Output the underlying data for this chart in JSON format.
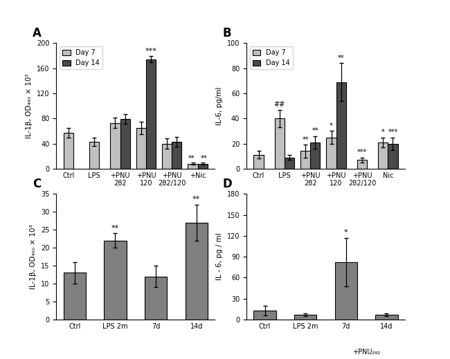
{
  "A": {
    "categories": [
      "Ctrl",
      "LPS",
      "+PNU\n282",
      "+PNU\n120",
      "+PNU\n282/120",
      "+Nic"
    ],
    "day7_values": [
      57,
      43,
      73,
      65,
      40,
      8
    ],
    "day7_errors": [
      8,
      7,
      8,
      10,
      8,
      2
    ],
    "day14_values": [
      null,
      null,
      79,
      174,
      43,
      8
    ],
    "day14_errors": [
      null,
      null,
      8,
      5,
      8,
      2
    ],
    "ylabel": "IL-1β, OD₄₉₀ × 10³",
    "ylim": [
      0,
      200
    ],
    "yticks": [
      0,
      40,
      80,
      120,
      160,
      200
    ],
    "label": "A"
  },
  "B": {
    "categories": [
      "Ctrl",
      "LPS",
      "+PNU\n282",
      "+PNU\n120",
      "+PNU\n282/120",
      "Nic"
    ],
    "day7_values": [
      11,
      40,
      14,
      25,
      7,
      21
    ],
    "day7_errors": [
      3,
      7,
      5,
      5,
      2,
      4
    ],
    "day14_values": [
      null,
      9,
      21,
      69,
      null,
      20
    ],
    "day14_errors": [
      null,
      2,
      5,
      15,
      null,
      5
    ],
    "ylabel": "IL-6, pg/ml",
    "ylim": [
      0,
      100
    ],
    "yticks": [
      0,
      20,
      40,
      60,
      80,
      100
    ],
    "label": "B"
  },
  "C": {
    "values": [
      13,
      22,
      12,
      27
    ],
    "errors": [
      3,
      2,
      3,
      5
    ],
    "ylabel": "IL-1β, OD₄₅₀ × 10³",
    "ylim": [
      0,
      35
    ],
    "yticks": [
      0,
      5,
      10,
      15,
      20,
      25,
      30,
      35
    ],
    "label": "C"
  },
  "D": {
    "values": [
      13,
      7,
      82,
      7
    ],
    "errors": [
      7,
      2,
      35,
      2
    ],
    "ylabel": "IL - 6, pg / ml",
    "ylim": [
      0,
      180
    ],
    "yticks": [
      0,
      30,
      60,
      90,
      120,
      150,
      180
    ],
    "label": "D"
  },
  "colors": {
    "day7": "#c0c0c0",
    "day14": "#4a4a4a",
    "single": "#808080"
  }
}
